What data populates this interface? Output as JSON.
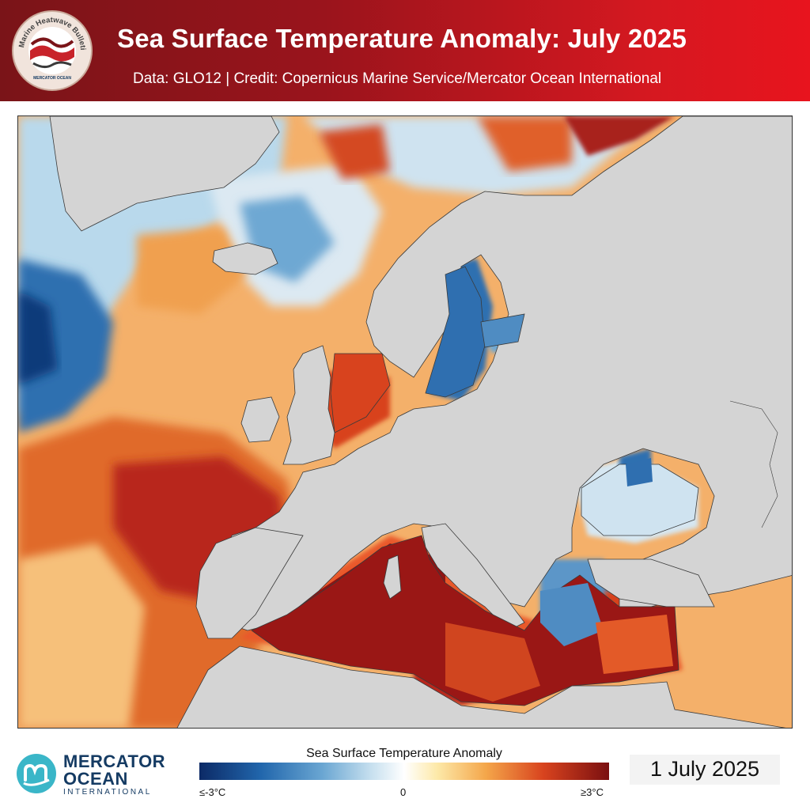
{
  "header": {
    "title": "Sea Surface Temperature Anomaly: July 2025",
    "subtitle": "Data: GLO12 | Credit: Copernicus Marine Service/Mercator Ocean International",
    "badge_text": "Marine Heatwave Bulletin",
    "badge_small": "MERCATOR OCEAN"
  },
  "logo": {
    "line1": "MERCATOR",
    "line2": "OCEAN",
    "line3": "INTERNATIONAL"
  },
  "colorbar": {
    "title": "Sea Surface Temperature Anomaly",
    "min_label": "≤-3°C",
    "mid_label": "0",
    "max_label": "≥3°C",
    "colors": [
      "#0c2a66",
      "#2166ac",
      "#c7e0ef",
      "#ffffff",
      "#fde9a9",
      "#d8431e",
      "#7a0f10"
    ]
  },
  "date": "1 July 2025",
  "colors": {
    "header_dark": "#7a1418",
    "header_bright": "#e8141e",
    "land": "#d4d4d4",
    "logo_navy": "#153b63",
    "logo_teal": "#3ab6c8"
  }
}
